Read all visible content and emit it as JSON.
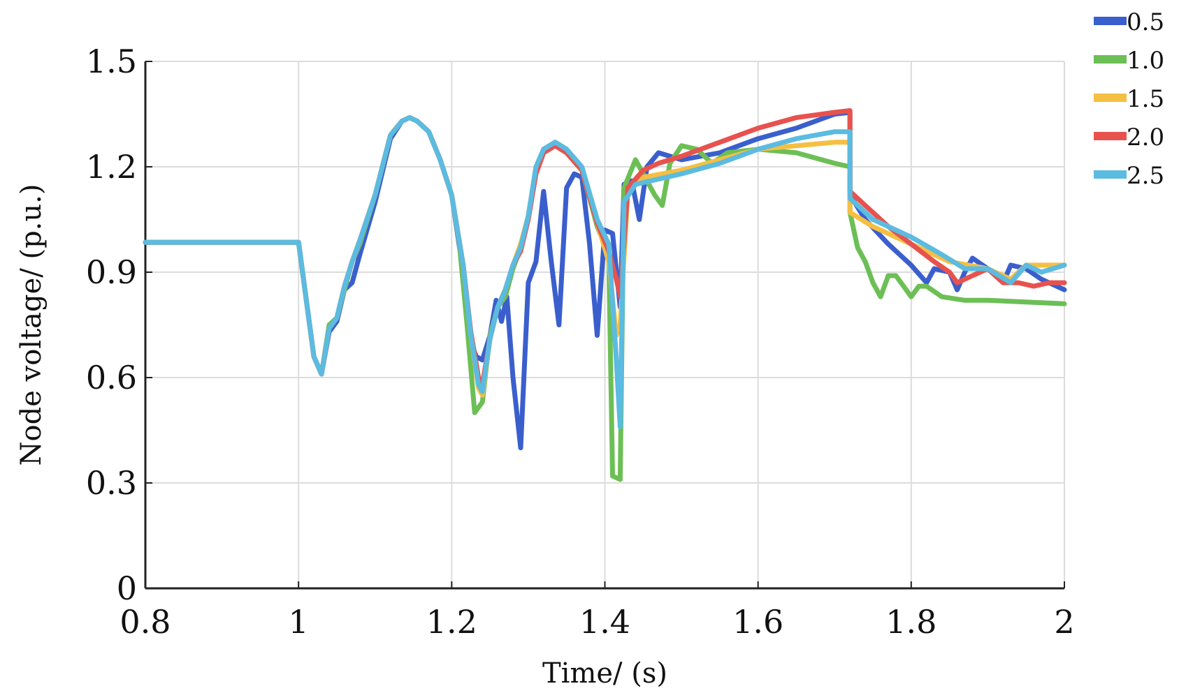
{
  "chart_data": {
    "type": "line",
    "title": "",
    "xlabel": "Time/ (s)",
    "ylabel": "Node voltage/ (p.u.)",
    "xlim": [
      0.8,
      2.0
    ],
    "ylim": [
      0,
      1.5
    ],
    "x_ticks": [
      0.8,
      1.0,
      1.2,
      1.4,
      1.6,
      1.8,
      2.0
    ],
    "x_tick_labels": [
      "0.8",
      "1",
      "1.2",
      "1.4",
      "1.6",
      "1.8",
      "2"
    ],
    "y_ticks": [
      0,
      0.3,
      0.6,
      0.9,
      1.2,
      1.5
    ],
    "y_tick_labels": [
      "0",
      "0.3",
      "0.6",
      "0.9",
      "1.2",
      "1.5"
    ],
    "grid": true,
    "legend_position": "top-right-outside",
    "series": [
      {
        "name": "0.5",
        "color": "#3a5fcd",
        "points": [
          [
            0.8,
            0.985
          ],
          [
            1.0,
            0.985
          ],
          [
            1.02,
            0.66
          ],
          [
            1.03,
            0.61
          ],
          [
            1.04,
            0.73
          ],
          [
            1.05,
            0.76
          ],
          [
            1.06,
            0.85
          ],
          [
            1.07,
            0.87
          ],
          [
            1.08,
            0.95
          ],
          [
            1.1,
            1.1
          ],
          [
            1.12,
            1.28
          ],
          [
            1.135,
            1.33
          ],
          [
            1.145,
            1.34
          ],
          [
            1.155,
            1.33
          ],
          [
            1.17,
            1.3
          ],
          [
            1.185,
            1.22
          ],
          [
            1.2,
            1.12
          ],
          [
            1.215,
            0.9
          ],
          [
            1.225,
            0.7
          ],
          [
            1.232,
            0.66
          ],
          [
            1.24,
            0.65
          ],
          [
            1.25,
            0.72
          ],
          [
            1.258,
            0.82
          ],
          [
            1.265,
            0.76
          ],
          [
            1.272,
            0.83
          ],
          [
            1.28,
            0.6
          ],
          [
            1.29,
            0.4
          ],
          [
            1.3,
            0.87
          ],
          [
            1.31,
            0.93
          ],
          [
            1.32,
            1.13
          ],
          [
            1.33,
            0.93
          ],
          [
            1.34,
            0.75
          ],
          [
            1.35,
            1.14
          ],
          [
            1.36,
            1.18
          ],
          [
            1.37,
            1.17
          ],
          [
            1.38,
            0.98
          ],
          [
            1.39,
            0.72
          ],
          [
            1.4,
            1.02
          ],
          [
            1.41,
            1.01
          ],
          [
            1.42,
            0.8
          ],
          [
            1.425,
            1.15
          ],
          [
            1.435,
            1.16
          ],
          [
            1.445,
            1.05
          ],
          [
            1.455,
            1.2
          ],
          [
            1.47,
            1.24
          ],
          [
            1.5,
            1.22
          ],
          [
            1.55,
            1.24
          ],
          [
            1.6,
            1.28
          ],
          [
            1.65,
            1.31
          ],
          [
            1.7,
            1.35
          ],
          [
            1.72,
            1.355
          ],
          [
            1.72,
            1.12
          ],
          [
            1.74,
            1.05
          ],
          [
            1.77,
            0.98
          ],
          [
            1.8,
            0.92
          ],
          [
            1.82,
            0.87
          ],
          [
            1.83,
            0.91
          ],
          [
            1.85,
            0.9
          ],
          [
            1.86,
            0.85
          ],
          [
            1.87,
            0.9
          ],
          [
            1.88,
            0.94
          ],
          [
            1.9,
            0.91
          ],
          [
            1.92,
            0.87
          ],
          [
            1.93,
            0.92
          ],
          [
            1.95,
            0.91
          ],
          [
            1.97,
            0.88
          ],
          [
            2.0,
            0.85
          ]
        ]
      },
      {
        "name": "1.0",
        "color": "#6cbf55",
        "points": [
          [
            0.8,
            0.985
          ],
          [
            1.0,
            0.985
          ],
          [
            1.02,
            0.66
          ],
          [
            1.03,
            0.61
          ],
          [
            1.04,
            0.75
          ],
          [
            1.05,
            0.77
          ],
          [
            1.06,
            0.85
          ],
          [
            1.07,
            0.93
          ],
          [
            1.08,
            0.98
          ],
          [
            1.1,
            1.12
          ],
          [
            1.12,
            1.29
          ],
          [
            1.135,
            1.33
          ],
          [
            1.145,
            1.34
          ],
          [
            1.155,
            1.33
          ],
          [
            1.17,
            1.3
          ],
          [
            1.185,
            1.22
          ],
          [
            1.2,
            1.12
          ],
          [
            1.21,
            0.98
          ],
          [
            1.22,
            0.75
          ],
          [
            1.23,
            0.5
          ],
          [
            1.24,
            0.53
          ],
          [
            1.25,
            0.72
          ],
          [
            1.26,
            0.8
          ],
          [
            1.27,
            0.83
          ],
          [
            1.28,
            0.91
          ],
          [
            1.29,
            0.97
          ],
          [
            1.3,
            1.06
          ],
          [
            1.31,
            1.19
          ],
          [
            1.32,
            1.25
          ],
          [
            1.335,
            1.27
          ],
          [
            1.35,
            1.25
          ],
          [
            1.37,
            1.19
          ],
          [
            1.39,
            1.03
          ],
          [
            1.405,
            0.95
          ],
          [
            1.41,
            0.32
          ],
          [
            1.42,
            0.31
          ],
          [
            1.425,
            1.14
          ],
          [
            1.44,
            1.22
          ],
          [
            1.455,
            1.16
          ],
          [
            1.465,
            1.12
          ],
          [
            1.475,
            1.09
          ],
          [
            1.485,
            1.21
          ],
          [
            1.5,
            1.26
          ],
          [
            1.52,
            1.25
          ],
          [
            1.54,
            1.21
          ],
          [
            1.56,
            1.24
          ],
          [
            1.6,
            1.25
          ],
          [
            1.65,
            1.24
          ],
          [
            1.7,
            1.21
          ],
          [
            1.72,
            1.2
          ],
          [
            1.72,
            1.07
          ],
          [
            1.73,
            0.97
          ],
          [
            1.74,
            0.93
          ],
          [
            1.75,
            0.87
          ],
          [
            1.76,
            0.83
          ],
          [
            1.77,
            0.89
          ],
          [
            1.78,
            0.89
          ],
          [
            1.79,
            0.86
          ],
          [
            1.8,
            0.83
          ],
          [
            1.81,
            0.86
          ],
          [
            1.82,
            0.86
          ],
          [
            1.84,
            0.83
          ],
          [
            1.87,
            0.82
          ],
          [
            1.9,
            0.82
          ],
          [
            1.95,
            0.815
          ],
          [
            2.0,
            0.81
          ]
        ]
      },
      {
        "name": "1.5",
        "color": "#f5bf42",
        "points": [
          [
            0.8,
            0.985
          ],
          [
            1.0,
            0.985
          ],
          [
            1.02,
            0.66
          ],
          [
            1.03,
            0.61
          ],
          [
            1.04,
            0.74
          ],
          [
            1.05,
            0.77
          ],
          [
            1.06,
            0.86
          ],
          [
            1.07,
            0.93
          ],
          [
            1.08,
            0.99
          ],
          [
            1.1,
            1.12
          ],
          [
            1.12,
            1.29
          ],
          [
            1.135,
            1.33
          ],
          [
            1.145,
            1.34
          ],
          [
            1.155,
            1.33
          ],
          [
            1.17,
            1.3
          ],
          [
            1.185,
            1.22
          ],
          [
            1.2,
            1.12
          ],
          [
            1.215,
            0.92
          ],
          [
            1.225,
            0.72
          ],
          [
            1.235,
            0.57
          ],
          [
            1.24,
            0.55
          ],
          [
            1.25,
            0.71
          ],
          [
            1.26,
            0.8
          ],
          [
            1.27,
            0.85
          ],
          [
            1.28,
            0.92
          ],
          [
            1.29,
            0.98
          ],
          [
            1.3,
            1.06
          ],
          [
            1.31,
            1.19
          ],
          [
            1.32,
            1.25
          ],
          [
            1.335,
            1.26
          ],
          [
            1.35,
            1.24
          ],
          [
            1.37,
            1.19
          ],
          [
            1.39,
            1.04
          ],
          [
            1.405,
            0.93
          ],
          [
            1.415,
            0.72
          ],
          [
            1.42,
            0.75
          ],
          [
            1.43,
            1.13
          ],
          [
            1.45,
            1.17
          ],
          [
            1.5,
            1.19
          ],
          [
            1.55,
            1.22
          ],
          [
            1.6,
            1.25
          ],
          [
            1.65,
            1.26
          ],
          [
            1.7,
            1.27
          ],
          [
            1.72,
            1.27
          ],
          [
            1.72,
            1.07
          ],
          [
            1.75,
            1.03
          ],
          [
            1.8,
            0.98
          ],
          [
            1.85,
            0.93
          ],
          [
            1.9,
            0.91
          ],
          [
            1.93,
            0.88
          ],
          [
            1.95,
            0.92
          ],
          [
            1.98,
            0.92
          ],
          [
            2.0,
            0.92
          ]
        ]
      },
      {
        "name": "2.0",
        "color": "#e8524e",
        "points": [
          [
            0.8,
            0.985
          ],
          [
            1.0,
            0.985
          ],
          [
            1.02,
            0.66
          ],
          [
            1.03,
            0.61
          ],
          [
            1.04,
            0.74
          ],
          [
            1.05,
            0.77
          ],
          [
            1.06,
            0.86
          ],
          [
            1.07,
            0.93
          ],
          [
            1.08,
            0.99
          ],
          [
            1.1,
            1.12
          ],
          [
            1.12,
            1.29
          ],
          [
            1.135,
            1.33
          ],
          [
            1.145,
            1.34
          ],
          [
            1.155,
            1.33
          ],
          [
            1.17,
            1.3
          ],
          [
            1.185,
            1.22
          ],
          [
            1.2,
            1.12
          ],
          [
            1.215,
            0.92
          ],
          [
            1.225,
            0.73
          ],
          [
            1.235,
            0.6
          ],
          [
            1.24,
            0.58
          ],
          [
            1.25,
            0.71
          ],
          [
            1.26,
            0.8
          ],
          [
            1.27,
            0.85
          ],
          [
            1.28,
            0.92
          ],
          [
            1.29,
            0.96
          ],
          [
            1.3,
            1.05
          ],
          [
            1.31,
            1.18
          ],
          [
            1.32,
            1.24
          ],
          [
            1.335,
            1.26
          ],
          [
            1.35,
            1.24
          ],
          [
            1.37,
            1.19
          ],
          [
            1.39,
            1.04
          ],
          [
            1.405,
            0.96
          ],
          [
            1.415,
            0.88
          ],
          [
            1.42,
            0.83
          ],
          [
            1.43,
            1.14
          ],
          [
            1.45,
            1.19
          ],
          [
            1.47,
            1.21
          ],
          [
            1.5,
            1.23
          ],
          [
            1.55,
            1.27
          ],
          [
            1.6,
            1.31
          ],
          [
            1.65,
            1.34
          ],
          [
            1.7,
            1.355
          ],
          [
            1.72,
            1.36
          ],
          [
            1.72,
            1.13
          ],
          [
            1.74,
            1.09
          ],
          [
            1.77,
            1.03
          ],
          [
            1.8,
            0.98
          ],
          [
            1.83,
            0.93
          ],
          [
            1.85,
            0.9
          ],
          [
            1.86,
            0.87
          ],
          [
            1.88,
            0.89
          ],
          [
            1.9,
            0.91
          ],
          [
            1.92,
            0.87
          ],
          [
            1.94,
            0.87
          ],
          [
            1.96,
            0.86
          ],
          [
            1.98,
            0.87
          ],
          [
            2.0,
            0.87
          ]
        ]
      },
      {
        "name": "2.5",
        "color": "#5bbbe0",
        "points": [
          [
            0.8,
            0.985
          ],
          [
            1.0,
            0.985
          ],
          [
            1.02,
            0.66
          ],
          [
            1.03,
            0.61
          ],
          [
            1.04,
            0.74
          ],
          [
            1.05,
            0.77
          ],
          [
            1.06,
            0.86
          ],
          [
            1.07,
            0.93
          ],
          [
            1.08,
            0.99
          ],
          [
            1.1,
            1.12
          ],
          [
            1.12,
            1.29
          ],
          [
            1.135,
            1.33
          ],
          [
            1.145,
            1.34
          ],
          [
            1.155,
            1.33
          ],
          [
            1.17,
            1.3
          ],
          [
            1.185,
            1.22
          ],
          [
            1.2,
            1.12
          ],
          [
            1.215,
            0.92
          ],
          [
            1.225,
            0.72
          ],
          [
            1.235,
            0.58
          ],
          [
            1.24,
            0.56
          ],
          [
            1.25,
            0.71
          ],
          [
            1.26,
            0.8
          ],
          [
            1.27,
            0.85
          ],
          [
            1.28,
            0.92
          ],
          [
            1.29,
            0.97
          ],
          [
            1.3,
            1.06
          ],
          [
            1.31,
            1.2
          ],
          [
            1.32,
            1.25
          ],
          [
            1.335,
            1.27
          ],
          [
            1.35,
            1.25
          ],
          [
            1.37,
            1.2
          ],
          [
            1.39,
            1.05
          ],
          [
            1.405,
            0.98
          ],
          [
            1.415,
            0.65
          ],
          [
            1.42,
            0.46
          ],
          [
            1.425,
            1.1
          ],
          [
            1.44,
            1.15
          ],
          [
            1.46,
            1.16
          ],
          [
            1.5,
            1.18
          ],
          [
            1.55,
            1.21
          ],
          [
            1.6,
            1.25
          ],
          [
            1.65,
            1.28
          ],
          [
            1.7,
            1.3
          ],
          [
            1.72,
            1.3
          ],
          [
            1.72,
            1.11
          ],
          [
            1.75,
            1.05
          ],
          [
            1.8,
            1.0
          ],
          [
            1.84,
            0.95
          ],
          [
            1.87,
            0.91
          ],
          [
            1.9,
            0.91
          ],
          [
            1.93,
            0.87
          ],
          [
            1.95,
            0.92
          ],
          [
            1.97,
            0.9
          ],
          [
            2.0,
            0.92
          ]
        ]
      }
    ]
  }
}
